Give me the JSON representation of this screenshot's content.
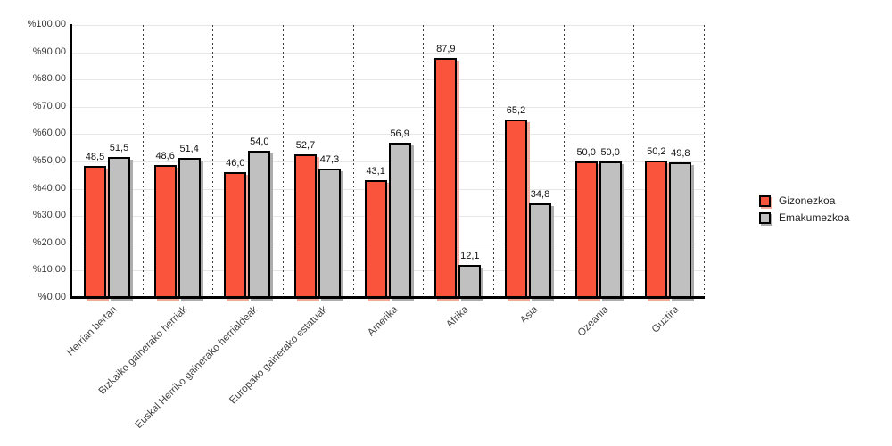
{
  "chart_data": {
    "type": "bar",
    "title": "",
    "categories": [
      "Herrian bertan",
      "Bizkaiko gainerako herriak",
      "Euskal Herriko gainerako herrialdeak",
      "Europako gainerako estatuak",
      "Amerika",
      "Afrika",
      "Asia",
      "Ozeania",
      "Guztira"
    ],
    "series": [
      {
        "name": "Gizonezkoa",
        "color": "#FA543C",
        "shadow_color": "#F3A99C",
        "values": [
          48.5,
          48.6,
          46.0,
          52.7,
          43.1,
          87.9,
          65.2,
          50.0,
          50.2
        ],
        "labels": [
          "48,5",
          "48,6",
          "46,0",
          "52,7",
          "43,1",
          "87,9",
          "65,2",
          "50,0",
          "50,2"
        ]
      },
      {
        "name": "Emakumezkoa",
        "color": "#C0C0C0",
        "shadow_color": "#ADADAD",
        "values": [
          51.5,
          51.4,
          54.0,
          47.3,
          56.9,
          12.1,
          34.8,
          50.0,
          49.8
        ],
        "labels": [
          "51,5",
          "51,4",
          "54,0",
          "47,3",
          "56,9",
          "12,1",
          "34,8",
          "50,0",
          "49,8"
        ]
      }
    ],
    "y_axis": {
      "min": 0,
      "max": 100,
      "step": 10,
      "tick_labels": [
        "%0,00",
        "%10,00",
        "%20,00",
        "%30,00",
        "%40,00",
        "%50,00",
        "%60,00",
        "%70,00",
        "%80,00",
        "%90,00",
        "%100,00"
      ]
    },
    "xlabel": "",
    "ylabel": "",
    "grid": {
      "horizontal": "solid-light",
      "vertical": "dotted-dark"
    },
    "legend_position": "right"
  }
}
